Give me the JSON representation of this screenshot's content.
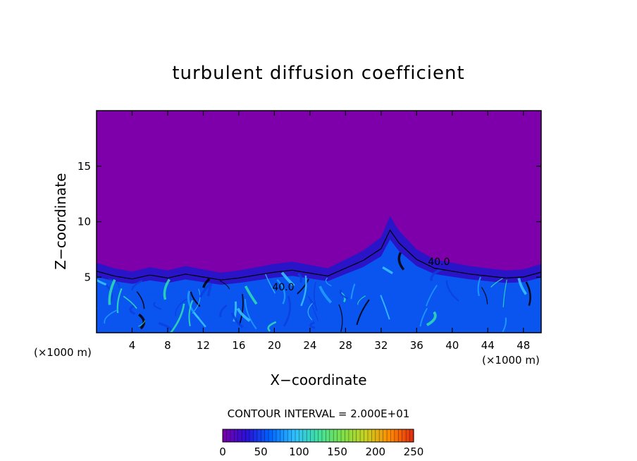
{
  "chart_data": {
    "type": "heatmap",
    "title": "turbulent diffusion coefficient",
    "xlabel": "X−coordinate",
    "ylabel": "Z−coordinate",
    "x_unit": "(×1000 m)",
    "y_unit": "(×1000 m)",
    "xlim": [
      0,
      50
    ],
    "ylim": [
      0,
      20
    ],
    "x_ticks": [
      4,
      8,
      12,
      16,
      20,
      24,
      28,
      32,
      36,
      40,
      44,
      48
    ],
    "y_ticks": [
      5,
      10,
      15
    ],
    "contour_labels": [
      {
        "text": "40.0",
        "x": 21.0,
        "z": 3.8
      },
      {
        "text": "40.0",
        "x": 38.5,
        "z": 6.1
      }
    ],
    "contour_interval_text": "CONTOUR INTERVAL = 2.000E+01",
    "colorbar": {
      "min": 0,
      "max": 250,
      "ticks": [
        0,
        50,
        100,
        150,
        200,
        250
      ],
      "colors": [
        "#7a00a8",
        "#2a10d8",
        "#0066ff",
        "#2fbfff",
        "#40e0a0",
        "#7be04a",
        "#c8d020",
        "#ff8a00",
        "#e02a10"
      ]
    },
    "background_color": "#7d00aa",
    "turbulent_layer_top_km": [
      [
        0,
        6.3
      ],
      [
        2,
        5.8
      ],
      [
        4,
        5.5
      ],
      [
        6,
        5.9
      ],
      [
        8,
        5.6
      ],
      [
        10,
        6.0
      ],
      [
        12,
        5.7
      ],
      [
        14,
        5.4
      ],
      [
        16,
        5.6
      ],
      [
        18,
        5.9
      ],
      [
        20,
        6.2
      ],
      [
        22,
        6.4
      ],
      [
        24,
        6.1
      ],
      [
        26,
        5.8
      ],
      [
        28,
        6.6
      ],
      [
        30,
        7.4
      ],
      [
        32,
        8.6
      ],
      [
        33,
        10.5
      ],
      [
        34,
        9.2
      ],
      [
        36,
        7.5
      ],
      [
        38,
        6.6
      ],
      [
        40,
        6.3
      ],
      [
        42,
        6.0
      ],
      [
        44,
        5.8
      ],
      [
        46,
        5.6
      ],
      [
        48,
        5.7
      ],
      [
        50,
        6.2
      ]
    ]
  }
}
